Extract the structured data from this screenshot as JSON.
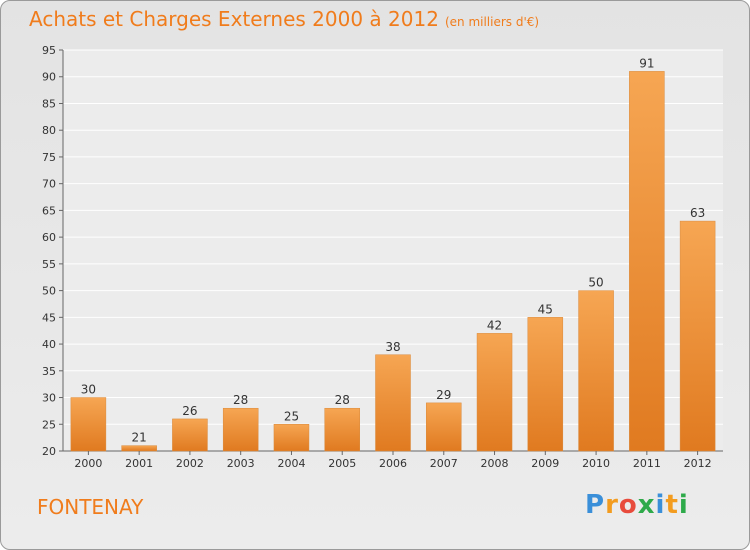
{
  "chart_data": {
    "type": "bar",
    "title": "Achats et Charges Externes 2000 à 2012",
    "subtitle": "(en milliers d'€)",
    "categories": [
      "2000",
      "2001",
      "2002",
      "2003",
      "2004",
      "2005",
      "2006",
      "2007",
      "2008",
      "2009",
      "2010",
      "2011",
      "2012"
    ],
    "values": [
      30,
      21,
      26,
      28,
      25,
      28,
      38,
      29,
      42,
      45,
      50,
      91,
      63
    ],
    "ylim": [
      20,
      95
    ],
    "yticks": [
      20,
      25,
      30,
      35,
      40,
      45,
      50,
      55,
      60,
      65,
      70,
      75,
      80,
      85,
      90,
      95
    ],
    "grid": true,
    "bar_color_top": "#f6a653",
    "bar_color_bottom": "#e07a20"
  },
  "place": "FONTENAY",
  "logo": {
    "letters": [
      "P",
      "r",
      "o",
      "x",
      "i",
      "t",
      "i"
    ],
    "colors": [
      "#3a8fd9",
      "#f39c1f",
      "#e84b3c",
      "#2eaa4a",
      "#3a8fd9",
      "#f39c1f",
      "#2eaa4a"
    ]
  }
}
